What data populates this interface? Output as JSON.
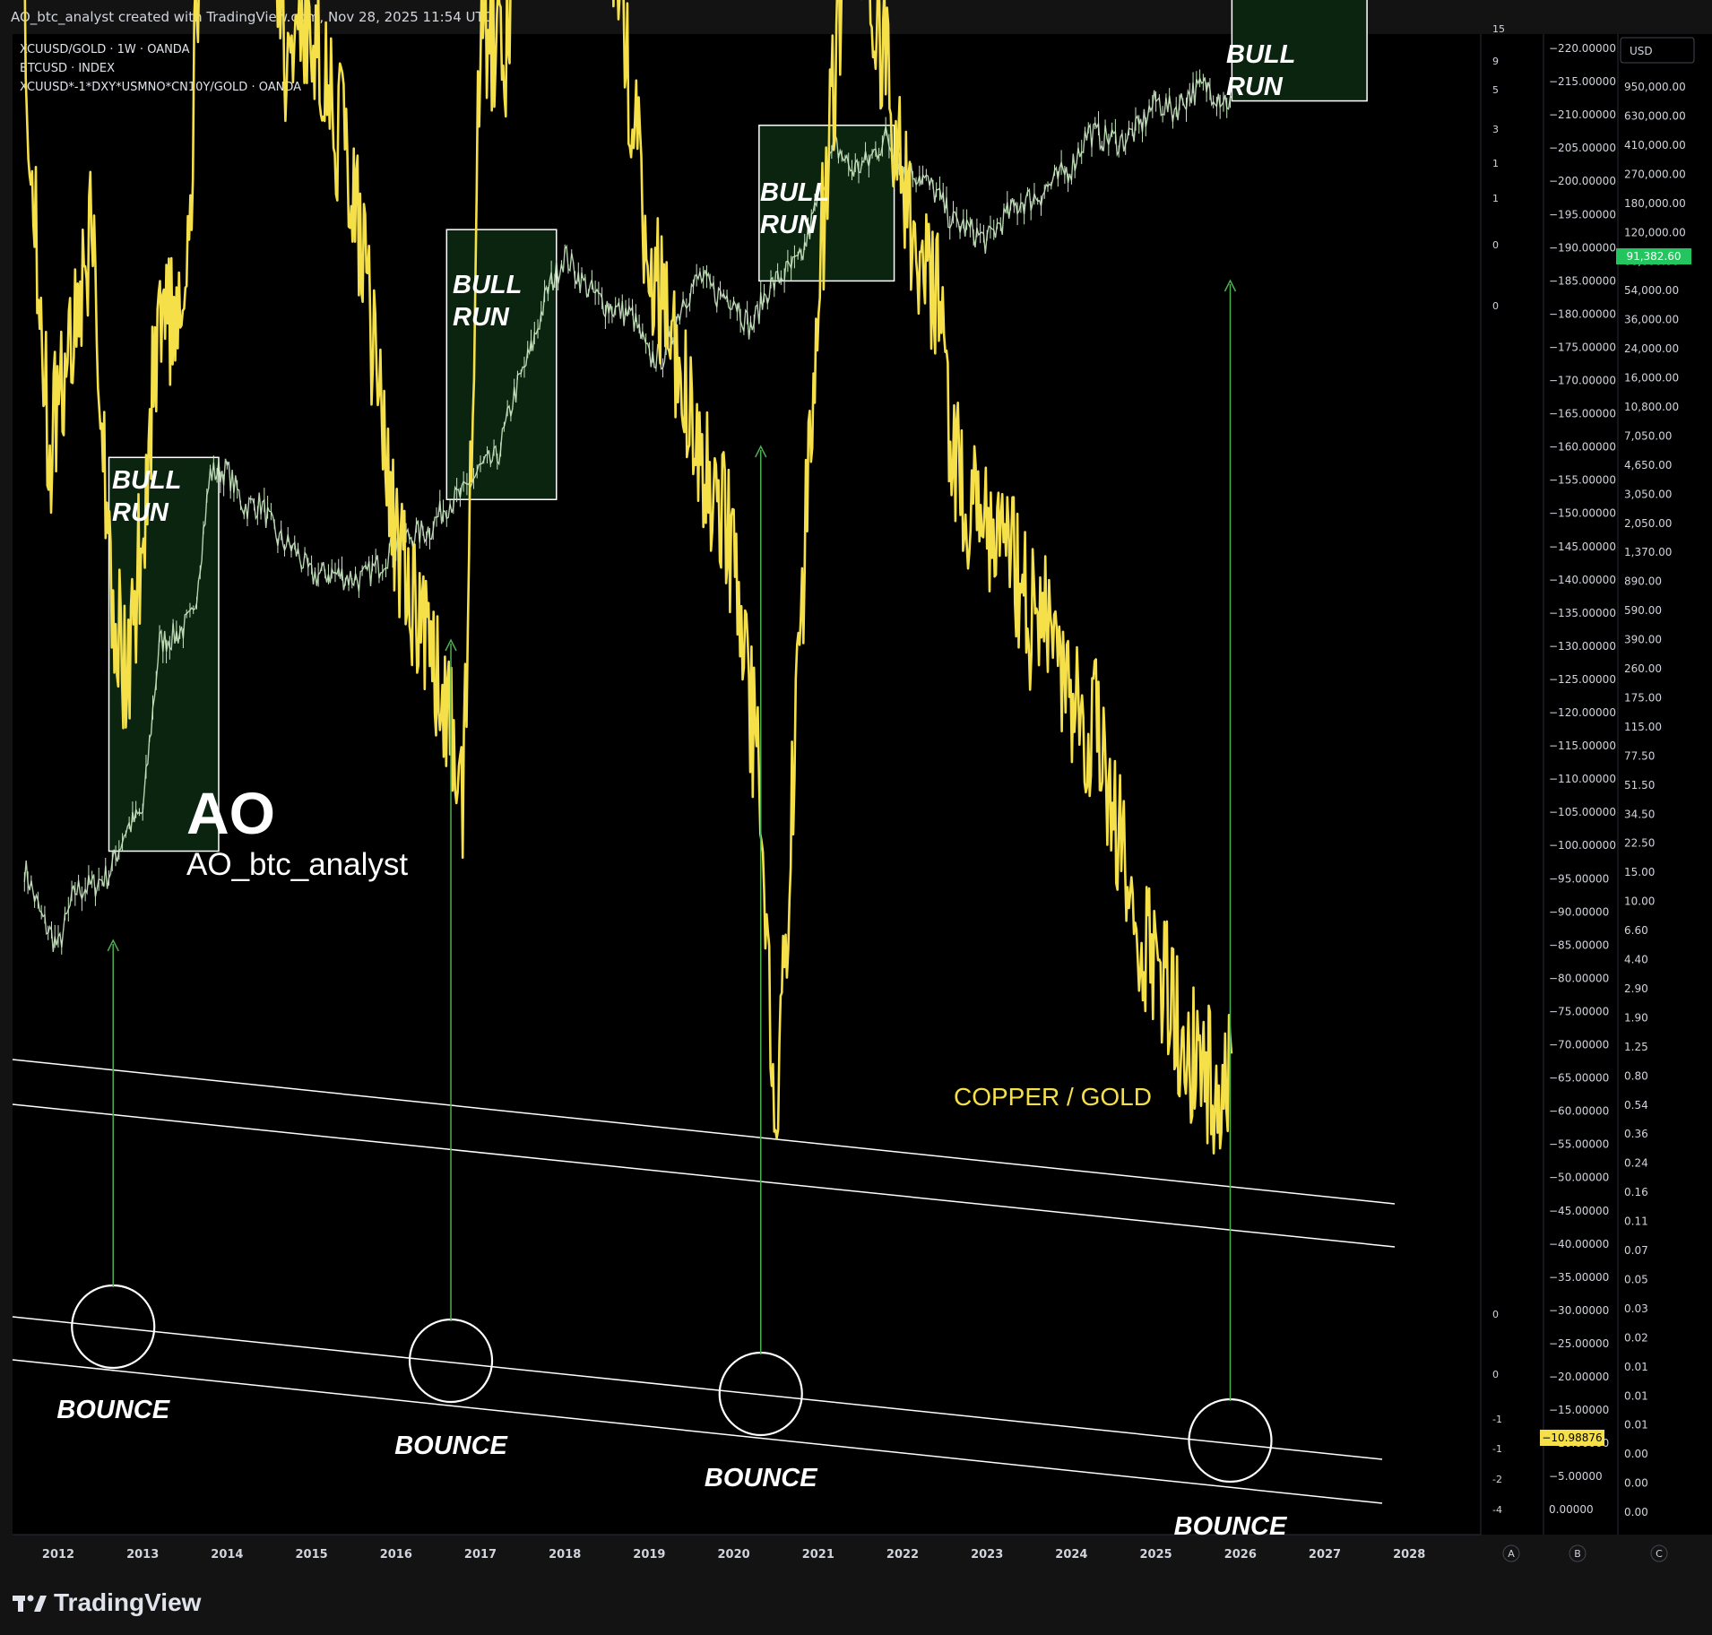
{
  "header": {
    "title": "AO_btc_analyst created with TradingView.com, Nov 28, 2025 11:54 UTC"
  },
  "legend": [
    "XCUUSD/GOLD · 1W · OANDA",
    "BTCUSD · INDEX",
    "XCUUSD*-1*DXY*USMNO*CN10Y/GOLD · OANDA"
  ],
  "currency_button": "USD",
  "watermark": {
    "big": "AO",
    "small": "AO_btc_analyst"
  },
  "annotations": {
    "bull_run_line1": "BULL",
    "bull_run_line2": "RUN",
    "bounce": "BOUNCE",
    "copper_gold": "COPPER / GOLD"
  },
  "footer": {
    "brand": "TradingView"
  },
  "axis_buttons": [
    "A",
    "B",
    "C"
  ],
  "colors": {
    "background": "#000000",
    "frame": "#131313",
    "btc_candles": "#c8e6c0",
    "copper_gold_line": "#f5e04a",
    "box_fill": "#0a2410",
    "arrow": "#4caf50",
    "price_tag": "#22c55e",
    "yellow_tag": "#f5e04a"
  },
  "chart_data": {
    "type": "line",
    "x_axis": {
      "ticks": [
        "2012",
        "2013",
        "2014",
        "2015",
        "2016",
        "2017",
        "2018",
        "2019",
        "2020",
        "2021",
        "2022",
        "2023",
        "2024",
        "2025",
        "2026",
        "2027",
        "2028"
      ]
    },
    "left_scale_ticks_upper": [
      "15",
      "9",
      "5",
      "3",
      "1",
      "1",
      "0",
      "0"
    ],
    "left_scale_ticks_lower": [
      "0",
      "0",
      "-1",
      "-1",
      "-2",
      "-4"
    ],
    "middle_scale_ticks": [
      "−220.00000",
      "−215.00000",
      "−210.00000",
      "−205.00000",
      "−200.00000",
      "−195.00000",
      "−190.00000",
      "−185.00000",
      "−180.00000",
      "−175.00000",
      "−170.00000",
      "−165.00000",
      "−160.00000",
      "−155.00000",
      "−150.00000",
      "−145.00000",
      "−140.00000",
      "−135.00000",
      "−130.00000",
      "−125.00000",
      "−120.00000",
      "−115.00000",
      "−110.00000",
      "−105.00000",
      "−100.00000",
      "−95.00000",
      "−90.00000",
      "−85.00000",
      "−80.00000",
      "−75.00000",
      "−70.00000",
      "−65.00000",
      "−60.00000",
      "−55.00000",
      "−50.00000",
      "−45.00000",
      "−40.00000",
      "−35.00000",
      "−30.00000",
      "−25.00000",
      "−20.00000",
      "−15.00000",
      "−10.00000",
      "−5.00000",
      "0.00000"
    ],
    "right_scale_ticks": [
      "950,000.00",
      "630,000.00",
      "410,000.00",
      "270,000.00",
      "180,000.00",
      "120,000.00",
      "80,000.00",
      "54,000.00",
      "36,000.00",
      "24,000.00",
      "16,000.00",
      "10,800.00",
      "7,050.00",
      "4,650.00",
      "3,050.00",
      "2,050.00",
      "1,370.00",
      "890.00",
      "590.00",
      "390.00",
      "260.00",
      "175.00",
      "115.00",
      "77.50",
      "51.50",
      "34.50",
      "22.50",
      "15.00",
      "10.00",
      "6.60",
      "4.40",
      "2.90",
      "1.90",
      "1.25",
      "0.80",
      "0.54",
      "0.36",
      "0.24",
      "0.16",
      "0.11",
      "0.07",
      "0.05",
      "0.03",
      "0.02",
      "0.01",
      "0.01",
      "0.01",
      "0.00",
      "0.00",
      "0.00"
    ],
    "btc_last_price": "91,382.60",
    "copper_gold_last": "−10.98876",
    "series": [
      {
        "name": "BTCUSD",
        "x": [
          2011.6,
          2011.8,
          2012.0,
          2012.2,
          2012.4,
          2012.6,
          2012.8,
          2013.0,
          2013.2,
          2013.4,
          2013.6,
          2013.8,
          2014.0,
          2014.2,
          2014.4,
          2014.6,
          2014.8,
          2015.0,
          2015.2,
          2015.4,
          2015.6,
          2015.8,
          2016.0,
          2016.2,
          2016.4,
          2016.6,
          2016.8,
          2017.0,
          2017.2,
          2017.4,
          2017.6,
          2017.8,
          2018.0,
          2018.2,
          2018.4,
          2018.6,
          2018.8,
          2019.0,
          2019.2,
          2019.4,
          2019.6,
          2019.8,
          2020.0,
          2020.2,
          2020.4,
          2020.6,
          2020.8,
          2021.0,
          2021.2,
          2021.4,
          2021.6,
          2021.8,
          2022.0,
          2022.2,
          2022.4,
          2022.6,
          2022.8,
          2023.0,
          2023.2,
          2023.4,
          2023.6,
          2023.8,
          2024.0,
          2024.2,
          2024.4,
          2024.6,
          2024.8,
          2025.0,
          2025.2,
          2025.4,
          2025.6,
          2025.9
        ],
        "values": [
          6.6,
          3.5,
          2.4,
          4.9,
          5.2,
          6.0,
          10.5,
          13.0,
          110,
          120,
          150,
          900,
          950,
          600,
          620,
          400,
          350,
          250,
          260,
          250,
          240,
          290,
          380,
          420,
          450,
          620,
          700,
          960,
          1100,
          2400,
          4200,
          9000,
          14000,
          10000,
          8000,
          7000,
          6500,
          3800,
          4000,
          8000,
          10500,
          8500,
          8200,
          5500,
          9000,
          11000,
          13000,
          28000,
          55000,
          40000,
          45000,
          61000,
          40000,
          38000,
          30000,
          21000,
          19000,
          16500,
          22000,
          27000,
          29000,
          35000,
          42000,
          65000,
          60000,
          58000,
          68000,
          96000,
          84000,
          105000,
          115000,
          91382
        ]
      },
      {
        "name": "COPPER / GOLD",
        "x": [
          2011.6,
          2011.9,
          2012.1,
          2012.4,
          2012.6,
          2012.8,
          2013.0,
          2013.2,
          2013.5,
          2013.8,
          2014.0,
          2014.3,
          2014.5,
          2014.7,
          2015.0,
          2015.3,
          2015.5,
          2015.8,
          2016.0,
          2016.3,
          2016.6,
          2016.8,
          2017.0,
          2017.3,
          2017.6,
          2017.8,
          2018.0,
          2018.3,
          2018.6,
          2018.9,
          2019.1,
          2019.4,
          2019.6,
          2019.9,
          2020.1,
          2020.3,
          2020.5,
          2020.8,
          2021.0,
          2021.3,
          2021.6,
          2021.9,
          2022.1,
          2022.4,
          2022.6,
          2022.9,
          2023.2,
          2023.5,
          2023.8,
          2024.0,
          2024.3,
          2024.6,
          2024.9,
          2025.1,
          2025.4,
          2025.7,
          2025.9
        ],
        "values": [
          -43,
          -30,
          -33,
          -37,
          -27,
          -23,
          -28,
          -35,
          -33,
          -55,
          -65,
          -50,
          -48,
          -42,
          -43,
          -40,
          -38,
          -32,
          -27,
          -25,
          -22,
          -20,
          -43,
          -42,
          -50,
          -60,
          -57,
          -48,
          -45,
          -38,
          -35,
          -32,
          -30,
          -28,
          -25,
          -20,
          -10,
          -25,
          -35,
          -45,
          -45,
          -40,
          -37,
          -35,
          -30,
          -28,
          -28,
          -25,
          -25,
          -22,
          -22,
          -18,
          -15,
          -14,
          -12,
          -11,
          -10.99
        ]
      }
    ],
    "bull_run_boxes": [
      {
        "x_start": 2012.6,
        "x_end": 2013.9,
        "btc_low": 8,
        "btc_high": 1100
      },
      {
        "x_start": 2016.6,
        "x_end": 2017.9,
        "btc_low": 650,
        "btc_high": 19000
      },
      {
        "x_start": 2020.3,
        "x_end": 2021.9,
        "btc_low": 10000,
        "btc_high": 70000
      },
      {
        "x_start": 2025.9,
        "x_end": 2027.5,
        "btc_low": 95000,
        "btc_high": 500000
      }
    ],
    "bounces": [
      2012.65,
      2016.65,
      2020.32,
      2025.88
    ]
  }
}
